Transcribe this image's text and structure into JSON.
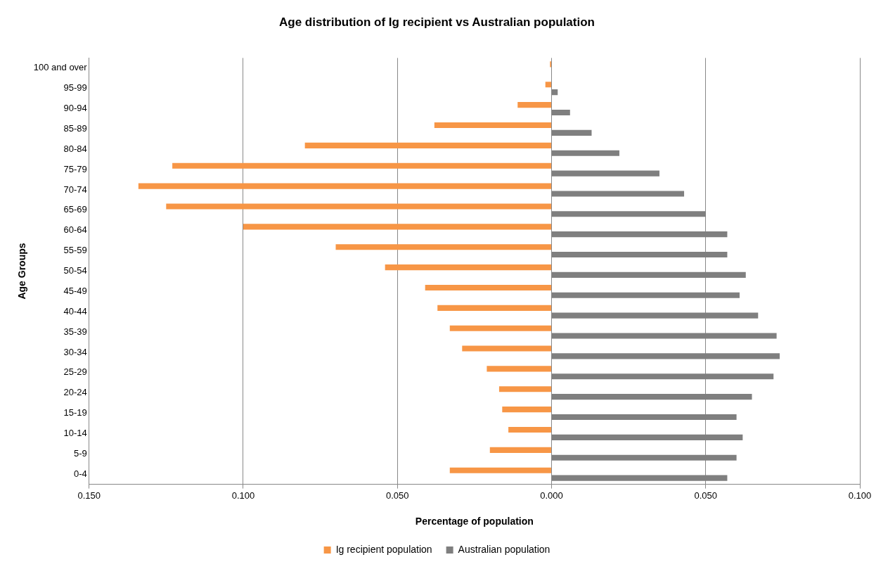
{
  "chart_data": {
    "type": "bar",
    "orientation": "horizontal",
    "title": "Age distribution of Ig recipient vs Australian population",
    "xlabel": "Percentage of population",
    "ylabel": "Age Groups",
    "categories": [
      "100 and over",
      "95-99",
      "90-94",
      "85-89",
      "80-84",
      "75-79",
      "70-74",
      "65-69",
      "60-64",
      "55-59",
      "50-54",
      "45-49",
      "40-44",
      "35-39",
      "30-34",
      "25-29",
      "20-24",
      "15-19",
      "10-14",
      "5-9",
      "0-4"
    ],
    "series": [
      {
        "name": "Ig recipient population",
        "color": "#f79646",
        "values": [
          -0.0005,
          -0.002,
          -0.011,
          -0.038,
          -0.08,
          -0.123,
          -0.134,
          -0.125,
          -0.1,
          -0.07,
          -0.054,
          -0.041,
          -0.037,
          -0.033,
          -0.029,
          -0.021,
          -0.017,
          -0.016,
          -0.014,
          -0.02,
          -0.033
        ]
      },
      {
        "name": "Australian population",
        "color": "#7f7f7f",
        "values": [
          0.0001,
          0.002,
          0.006,
          0.013,
          0.022,
          0.035,
          0.043,
          0.05,
          0.057,
          0.057,
          0.063,
          0.061,
          0.067,
          0.073,
          0.074,
          0.072,
          0.065,
          0.06,
          0.062,
          0.06,
          0.057
        ]
      }
    ],
    "xlim": [
      -0.15,
      0.1
    ],
    "xticks": [
      {
        "value": -0.15,
        "label": "0.150"
      },
      {
        "value": -0.1,
        "label": "0.100"
      },
      {
        "value": -0.05,
        "label": "0.050"
      },
      {
        "value": 0,
        "label": "0.000"
      },
      {
        "value": 0.05,
        "label": "0.050"
      },
      {
        "value": 0.1,
        "label": "0.100"
      }
    ],
    "grid": "x",
    "legend": "bottom"
  }
}
